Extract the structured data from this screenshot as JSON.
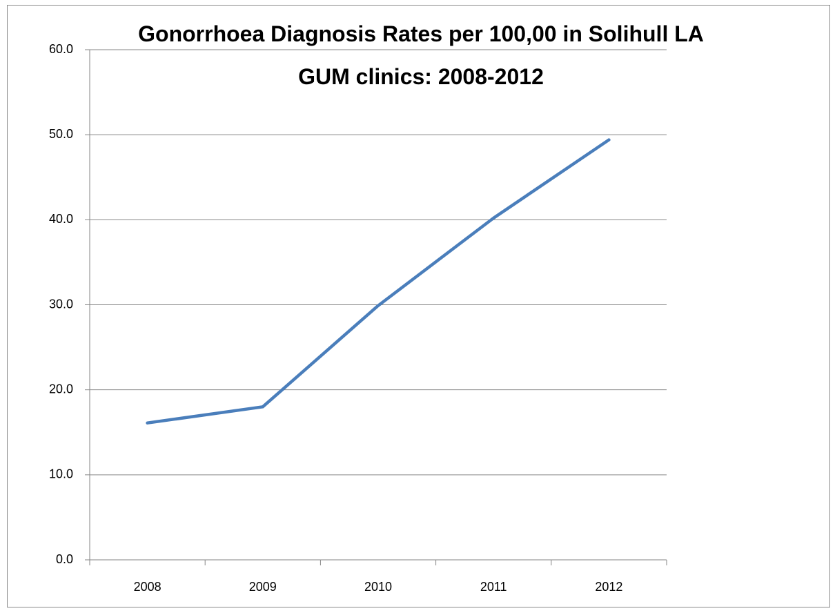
{
  "chart_data": {
    "type": "line",
    "title": "Gonorrhoea Diagnosis Rates per 100,00 in Solihull LA GUM clinics: 2008-2012",
    "categories": [
      "2008",
      "2009",
      "2010",
      "2011",
      "2012"
    ],
    "values": [
      16.1,
      18.0,
      29.9,
      40.2,
      49.4
    ],
    "color": "#4a7ebb",
    "ylim": [
      0,
      60
    ],
    "yticks": [
      {
        "value": 0,
        "label": "0.0"
      },
      {
        "value": 10,
        "label": "10.0"
      },
      {
        "value": 20,
        "label": "20.0"
      },
      {
        "value": 30,
        "label": "30.0"
      },
      {
        "value": 40,
        "label": "40.0"
      },
      {
        "value": 50,
        "label": "50.0"
      },
      {
        "value": 60,
        "label": "60.0"
      }
    ],
    "grid": true
  }
}
